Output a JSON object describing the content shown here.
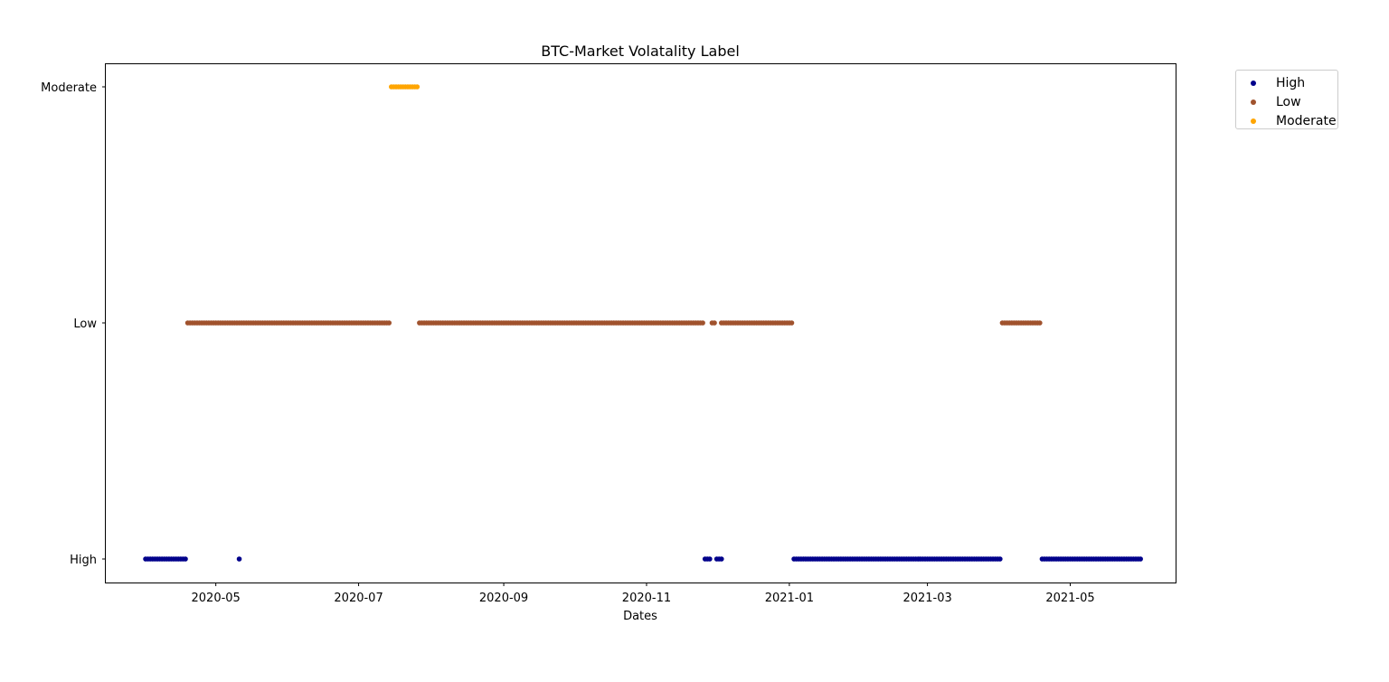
{
  "chart_data": {
    "type": "scatter",
    "title": "BTC-Market Volatality Label",
    "xlabel": "Dates",
    "ylabel": "",
    "y_categories": [
      "High",
      "Low",
      "Moderate"
    ],
    "x_tick_labels": [
      "2020-05",
      "2020-07",
      "2020-09",
      "2020-11",
      "2021-01",
      "2021-03",
      "2021-05"
    ],
    "xlim": [
      "2020-03-15",
      "2021-06-15"
    ],
    "grid": false,
    "legend_placement": "outside top-right",
    "series": [
      {
        "name": "High",
        "color": "#00008b",
        "ranges": [
          [
            "2020-04-01",
            "2020-04-18"
          ],
          [
            "2020-05-11",
            "2020-05-11"
          ],
          [
            "2020-11-26",
            "2020-11-28"
          ],
          [
            "2020-12-01",
            "2020-12-03"
          ],
          [
            "2021-01-03",
            "2021-04-01"
          ],
          [
            "2021-04-19",
            "2021-05-31"
          ]
        ]
      },
      {
        "name": "Low",
        "color": "#a0522d",
        "ranges": [
          [
            "2020-04-19",
            "2020-07-14"
          ],
          [
            "2020-07-27",
            "2020-11-25"
          ],
          [
            "2020-11-29",
            "2020-11-30"
          ],
          [
            "2020-12-03",
            "2021-01-02"
          ],
          [
            "2021-04-02",
            "2021-04-18"
          ]
        ]
      },
      {
        "name": "Moderate",
        "color": "#ffa500",
        "ranges": [
          [
            "2020-07-15",
            "2020-07-26"
          ]
        ]
      }
    ]
  }
}
